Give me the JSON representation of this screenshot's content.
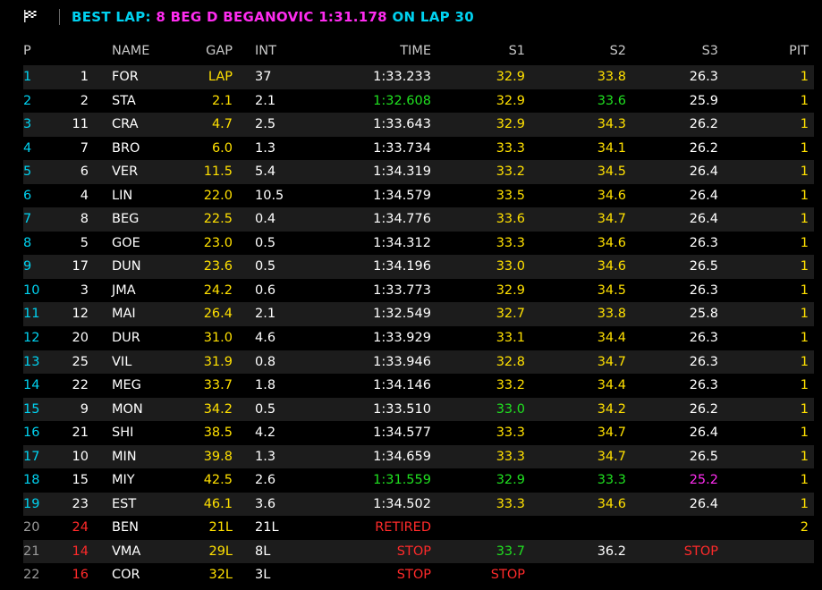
{
  "best_lap": {
    "prefix": "BEST LAP:",
    "driver": "8 BEG D BEGANOVIC 1:31.178",
    "suffix": "ON LAP 30"
  },
  "columns": {
    "p": "P",
    "name": "NAME",
    "gap": "GAP",
    "int": "INT",
    "time": "TIME",
    "s1": "S1",
    "s2": "S2",
    "s3": "S3",
    "pit": "PIT"
  },
  "colors": {
    "cyan": "#00d2f0",
    "yellow": "#ffe000",
    "green": "#20e020",
    "magenta": "#ff2cf0",
    "red": "#ff2a2a"
  },
  "rows": [
    {
      "p": "1",
      "num": "1",
      "name": "FOR",
      "gap": "LAP",
      "int": "37",
      "time": "1:33.233",
      "s1": "32.9",
      "s2": "33.8",
      "s3": "26.3",
      "pit": "1"
    },
    {
      "p": "2",
      "num": "2",
      "name": "STA",
      "gap": "2.1",
      "int": "2.1",
      "time": "1:32.608",
      "s1": "32.9",
      "s2": "33.6",
      "s3": "25.9",
      "pit": "1"
    },
    {
      "p": "3",
      "num": "11",
      "name": "CRA",
      "gap": "4.7",
      "int": "2.5",
      "time": "1:33.643",
      "s1": "32.9",
      "s2": "34.3",
      "s3": "26.2",
      "pit": "1"
    },
    {
      "p": "4",
      "num": "7",
      "name": "BRO",
      "gap": "6.0",
      "int": "1.3",
      "time": "1:33.734",
      "s1": "33.3",
      "s2": "34.1",
      "s3": "26.2",
      "pit": "1"
    },
    {
      "p": "5",
      "num": "6",
      "name": "VER",
      "gap": "11.5",
      "int": "5.4",
      "time": "1:34.319",
      "s1": "33.2",
      "s2": "34.5",
      "s3": "26.4",
      "pit": "1"
    },
    {
      "p": "6",
      "num": "4",
      "name": "LIN",
      "gap": "22.0",
      "int": "10.5",
      "time": "1:34.579",
      "s1": "33.5",
      "s2": "34.6",
      "s3": "26.4",
      "pit": "1"
    },
    {
      "p": "7",
      "num": "8",
      "name": "BEG",
      "gap": "22.5",
      "int": "0.4",
      "time": "1:34.776",
      "s1": "33.6",
      "s2": "34.7",
      "s3": "26.4",
      "pit": "1"
    },
    {
      "p": "8",
      "num": "5",
      "name": "GOE",
      "gap": "23.0",
      "int": "0.5",
      "time": "1:34.312",
      "s1": "33.3",
      "s2": "34.6",
      "s3": "26.3",
      "pit": "1"
    },
    {
      "p": "9",
      "num": "17",
      "name": "DUN",
      "gap": "23.6",
      "int": "0.5",
      "time": "1:34.196",
      "s1": "33.0",
      "s2": "34.6",
      "s3": "26.5",
      "pit": "1"
    },
    {
      "p": "10",
      "num": "3",
      "name": "JMA",
      "gap": "24.2",
      "int": "0.6",
      "time": "1:33.773",
      "s1": "32.9",
      "s2": "34.5",
      "s3": "26.3",
      "pit": "1"
    },
    {
      "p": "11",
      "num": "12",
      "name": "MAI",
      "gap": "26.4",
      "int": "2.1",
      "time": "1:32.549",
      "s1": "32.7",
      "s2": "33.8",
      "s3": "25.8",
      "pit": "1"
    },
    {
      "p": "12",
      "num": "20",
      "name": "DUR",
      "gap": "31.0",
      "int": "4.6",
      "time": "1:33.929",
      "s1": "33.1",
      "s2": "34.4",
      "s3": "26.3",
      "pit": "1"
    },
    {
      "p": "13",
      "num": "25",
      "name": "VIL",
      "gap": "31.9",
      "int": "0.8",
      "time": "1:33.946",
      "s1": "32.8",
      "s2": "34.7",
      "s3": "26.3",
      "pit": "1"
    },
    {
      "p": "14",
      "num": "22",
      "name": "MEG",
      "gap": "33.7",
      "int": "1.8",
      "time": "1:34.146",
      "s1": "33.2",
      "s2": "34.4",
      "s3": "26.3",
      "pit": "1"
    },
    {
      "p": "15",
      "num": "9",
      "name": "MON",
      "gap": "34.2",
      "int": "0.5",
      "time": "1:33.510",
      "s1": "33.0",
      "s2": "34.2",
      "s3": "26.2",
      "pit": "1"
    },
    {
      "p": "16",
      "num": "21",
      "name": "SHI",
      "gap": "38.5",
      "int": "4.2",
      "time": "1:34.577",
      "s1": "33.3",
      "s2": "34.7",
      "s3": "26.4",
      "pit": "1"
    },
    {
      "p": "17",
      "num": "10",
      "name": "MIN",
      "gap": "39.8",
      "int": "1.3",
      "time": "1:34.659",
      "s1": "33.3",
      "s2": "34.7",
      "s3": "26.5",
      "pit": "1"
    },
    {
      "p": "18",
      "num": "15",
      "name": "MIY",
      "gap": "42.5",
      "int": "2.6",
      "time": "1:31.559",
      "s1": "32.9",
      "s2": "33.3",
      "s3": "25.2",
      "pit": "1"
    },
    {
      "p": "19",
      "num": "23",
      "name": "EST",
      "gap": "46.1",
      "int": "3.6",
      "time": "1:34.502",
      "s1": "33.3",
      "s2": "34.6",
      "s3": "26.4",
      "pit": "1"
    },
    {
      "p": "20",
      "num": "24",
      "name": "BEN",
      "gap": "21L",
      "int": "21L",
      "time": "RETIRED",
      "s1": "",
      "s2": "",
      "s3": "",
      "pit": "2"
    },
    {
      "p": "21",
      "num": "14",
      "name": "VMA",
      "gap": "29L",
      "int": "8L",
      "time": "STOP",
      "s1": "33.7",
      "s2": "36.2",
      "s3": "STOP",
      "pit": ""
    },
    {
      "p": "22",
      "num": "16",
      "name": "COR",
      "gap": "32L",
      "int": "3L",
      "time": "STOP",
      "s1": "STOP",
      "s2": "",
      "s3": "",
      "pit": ""
    }
  ]
}
